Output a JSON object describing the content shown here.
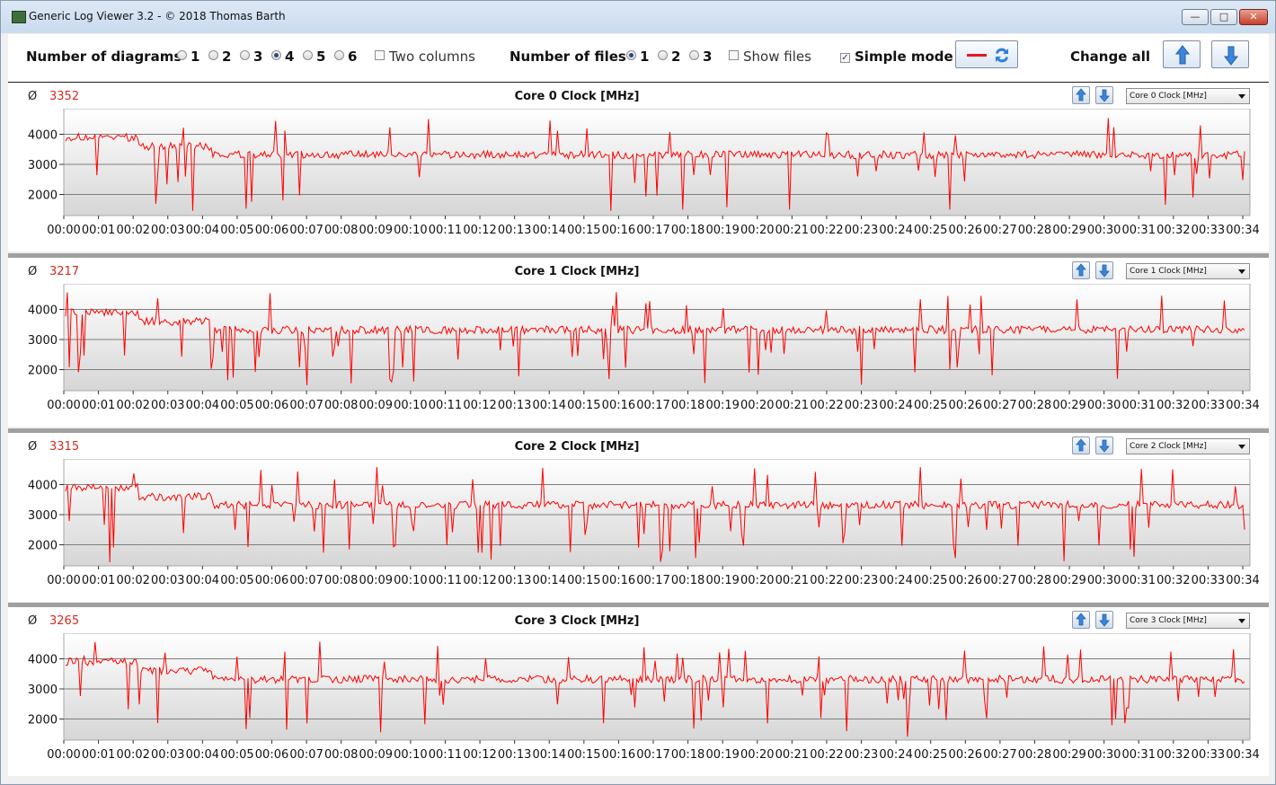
{
  "window": {
    "title": "Generic Log Viewer 3.2 - © 2018 Thomas Barth"
  },
  "toolbar": {
    "diagrams_label": "Number of diagrams",
    "diagram_options": [
      "1",
      "2",
      "3",
      "4",
      "5",
      "6"
    ],
    "diagrams_selected": "4",
    "two_columns_label": "Two columns",
    "two_columns_checked": false,
    "files_label": "Number of files",
    "file_options": [
      "1",
      "2",
      "3"
    ],
    "files_selected": "1",
    "show_files_label": "Show files",
    "show_files_checked": false,
    "simple_mode_label": "Simple mode",
    "simple_mode_checked": true,
    "change_all_label": "Change all",
    "line_color": "#ff0000"
  },
  "chart_data": [
    {
      "type": "line",
      "title": "Core 0 Clock [MHz]",
      "average": "3352",
      "selector": "Core 0 Clock [MHz]",
      "y_ticks": [
        2000,
        3000,
        4000
      ],
      "ylim": [
        1300,
        4850
      ],
      "x_ticks": [
        "00:00",
        "00:01",
        "00:02",
        "00:03",
        "00:04",
        "00:05",
        "00:06",
        "00:07",
        "00:08",
        "00:09",
        "00:10",
        "00:11",
        "00:12",
        "00:13",
        "00:14",
        "00:15",
        "00:16",
        "00:17",
        "00:18",
        "00:19",
        "00:20",
        "00:21",
        "00:22",
        "00:23",
        "00:24",
        "00:25",
        "00:26",
        "00:27",
        "00:28",
        "00:29",
        "00:30",
        "00:31",
        "00:32",
        "00:33",
        "00:34"
      ],
      "color": "#ff0000"
    },
    {
      "type": "line",
      "title": "Core 1 Clock [MHz]",
      "average": "3217",
      "selector": "Core 1 Clock [MHz]",
      "y_ticks": [
        2000,
        3000,
        4000
      ],
      "ylim": [
        1300,
        4850
      ],
      "x_ticks": [
        "00:00",
        "00:01",
        "00:02",
        "00:03",
        "00:04",
        "00:05",
        "00:06",
        "00:07",
        "00:08",
        "00:09",
        "00:10",
        "00:11",
        "00:12",
        "00:13",
        "00:14",
        "00:15",
        "00:16",
        "00:17",
        "00:18",
        "00:19",
        "00:20",
        "00:21",
        "00:22",
        "00:23",
        "00:24",
        "00:25",
        "00:26",
        "00:27",
        "00:28",
        "00:29",
        "00:30",
        "00:31",
        "00:32",
        "00:33",
        "00:34"
      ],
      "color": "#ff0000"
    },
    {
      "type": "line",
      "title": "Core 2 Clock [MHz]",
      "average": "3315",
      "selector": "Core 2 Clock [MHz]",
      "y_ticks": [
        2000,
        3000,
        4000
      ],
      "ylim": [
        1300,
        4850
      ],
      "x_ticks": [
        "00:00",
        "00:01",
        "00:02",
        "00:03",
        "00:04",
        "00:05",
        "00:06",
        "00:07",
        "00:08",
        "00:09",
        "00:10",
        "00:11",
        "00:12",
        "00:13",
        "00:14",
        "00:15",
        "00:16",
        "00:17",
        "00:18",
        "00:19",
        "00:20",
        "00:21",
        "00:22",
        "00:23",
        "00:24",
        "00:25",
        "00:26",
        "00:27",
        "00:28",
        "00:29",
        "00:30",
        "00:31",
        "00:32",
        "00:33",
        "00:34"
      ],
      "color": "#ff0000"
    },
    {
      "type": "line",
      "title": "Core 3 Clock [MHz]",
      "average": "3265",
      "selector": "Core 3 Clock [MHz]",
      "y_ticks": [
        2000,
        3000,
        4000
      ],
      "ylim": [
        1300,
        4850
      ],
      "x_ticks": [
        "00:00",
        "00:01",
        "00:02",
        "00:03",
        "00:04",
        "00:05",
        "00:06",
        "00:07",
        "00:08",
        "00:09",
        "00:10",
        "00:11",
        "00:12",
        "00:13",
        "00:14",
        "00:15",
        "00:16",
        "00:17",
        "00:18",
        "00:19",
        "00:20",
        "00:21",
        "00:22",
        "00:23",
        "00:24",
        "00:25",
        "00:26",
        "00:27",
        "00:28",
        "00:29",
        "00:30",
        "00:31",
        "00:32",
        "00:33",
        "00:34"
      ],
      "color": "#ff0000"
    }
  ],
  "panel_controls": {
    "avg_symbol": "Ø"
  },
  "icons": {
    "app": "app-icon",
    "up": "arrow-up-icon",
    "down": "arrow-down-icon",
    "refresh": "refresh-icon",
    "line": "line-color-icon"
  }
}
